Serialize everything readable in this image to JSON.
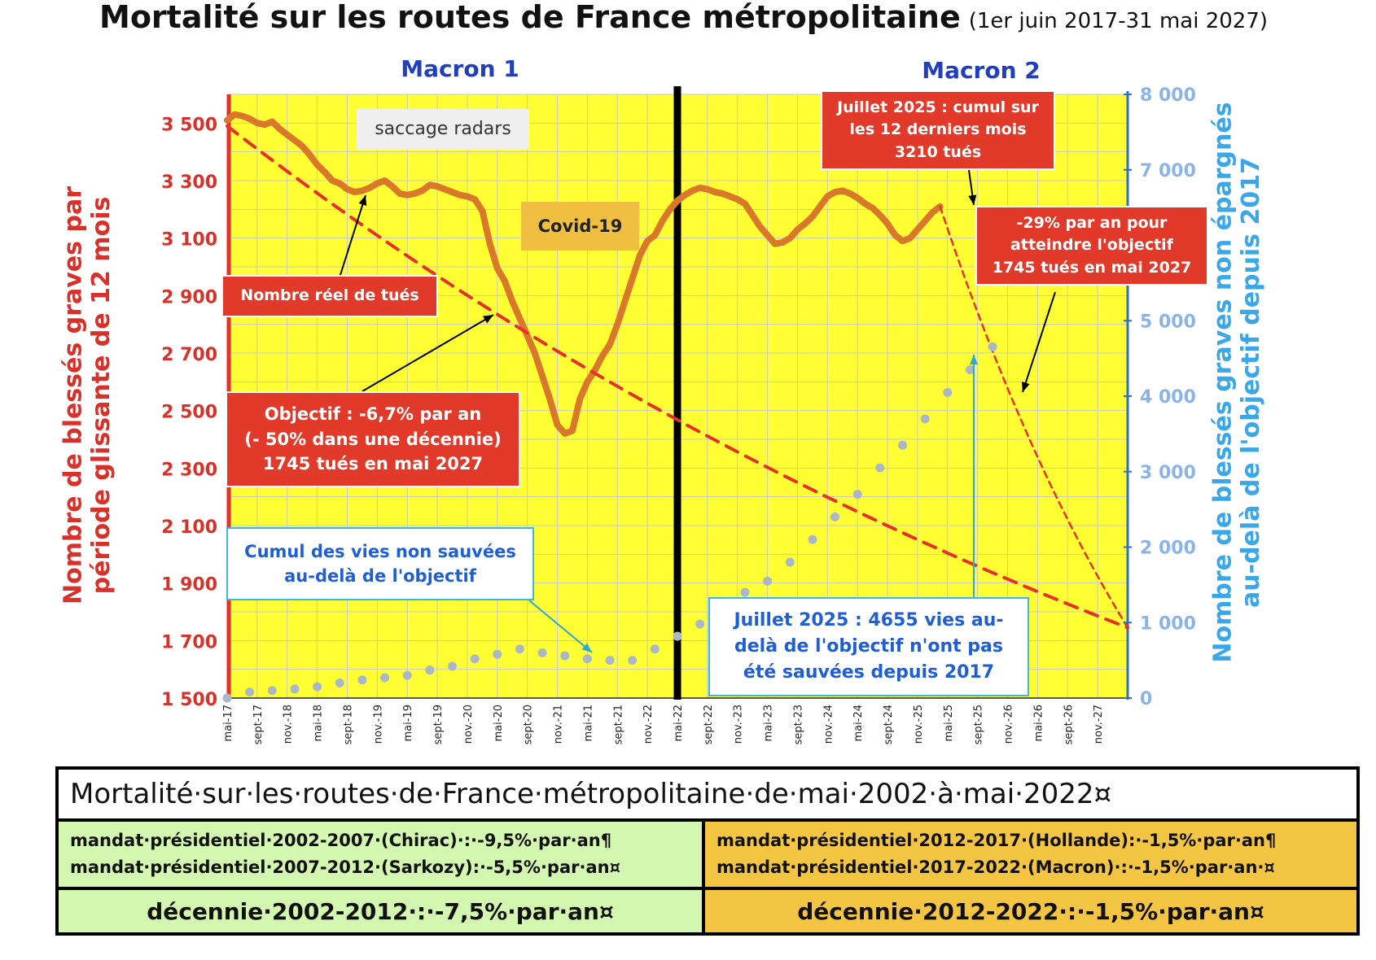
{
  "title": "Mortalité sur les routes de France métropolitaine",
  "title_period": "(1er juin 2017-31 mai 2027)",
  "sections": [
    "Macron 1",
    "Macron 2"
  ],
  "chart_data": {
    "type": "line",
    "ylabel_left": "Nombre de blessés graves par\npériode glissante de 12 mois",
    "ylabel_right": "Nombre de blessés graves non épargnés\nau-delà de l'objectif depuis 2017",
    "ylim_left": [
      1500,
      3600
    ],
    "ylim_right": [
      0,
      8000
    ],
    "yticks_left": [
      "3 500",
      "3 300",
      "3 100",
      "2 900",
      "2 700",
      "2 500",
      "2 300",
      "2 100",
      "1 900",
      "1 700",
      "1 500"
    ],
    "yticks_right": [
      "8 000",
      "7 000",
      "5 000",
      "4 000",
      "3 000",
      "2 000",
      "1 000",
      "0"
    ],
    "xticks": [
      "mai-17",
      "sept-17",
      "nov.-18",
      "mai-18",
      "sept-18",
      "nov.-19",
      "mai-19",
      "sept-19",
      "nov.-20",
      "mai-20",
      "sept-20",
      "nov.-21",
      "mai-21",
      "sept-21",
      "nov.-22",
      "mai-22",
      "sept-22",
      "nov.-23",
      "mai-23",
      "sept-23",
      "nov.-24",
      "mai-24",
      "sept-24",
      "nov.-25",
      "mai-25",
      "sept-25",
      "nov.-26",
      "mai-26",
      "sept-26",
      "nov.-27"
    ],
    "x_range_months": [
      0,
      120
    ],
    "divider_month": 60,
    "grid": true,
    "series": [
      {
        "name": "Nombre réel de tués",
        "color": "#d9782a",
        "axis": "left",
        "points": [
          [
            0,
            3510
          ],
          [
            1,
            3530
          ],
          [
            2,
            3525
          ],
          [
            3,
            3515
          ],
          [
            4,
            3500
          ],
          [
            5,
            3495
          ],
          [
            6,
            3505
          ],
          [
            7,
            3480
          ],
          [
            8,
            3460
          ],
          [
            9,
            3440
          ],
          [
            10,
            3420
          ],
          [
            11,
            3390
          ],
          [
            12,
            3355
          ],
          [
            13,
            3330
          ],
          [
            14,
            3300
          ],
          [
            15,
            3290
          ],
          [
            16,
            3270
          ],
          [
            17,
            3260
          ],
          [
            18,
            3265
          ],
          [
            19,
            3275
          ],
          [
            20,
            3290
          ],
          [
            21,
            3300
          ],
          [
            22,
            3280
          ],
          [
            23,
            3255
          ],
          [
            24,
            3250
          ],
          [
            25,
            3255
          ],
          [
            26,
            3265
          ],
          [
            27,
            3285
          ],
          [
            28,
            3280
          ],
          [
            29,
            3270
          ],
          [
            30,
            3260
          ],
          [
            31,
            3250
          ],
          [
            32,
            3245
          ],
          [
            33,
            3235
          ],
          [
            34,
            3195
          ],
          [
            35,
            3080
          ],
          [
            36,
            2995
          ],
          [
            37,
            2950
          ],
          [
            38,
            2880
          ],
          [
            39,
            2820
          ],
          [
            40,
            2760
          ],
          [
            41,
            2700
          ],
          [
            42,
            2620
          ],
          [
            43,
            2540
          ],
          [
            44,
            2450
          ],
          [
            45,
            2420
          ],
          [
            46,
            2430
          ],
          [
            47,
            2540
          ],
          [
            48,
            2600
          ],
          [
            49,
            2640
          ],
          [
            50,
            2690
          ],
          [
            51,
            2730
          ],
          [
            52,
            2800
          ],
          [
            53,
            2880
          ],
          [
            54,
            2960
          ],
          [
            55,
            3040
          ],
          [
            56,
            3090
          ],
          [
            57,
            3110
          ],
          [
            58,
            3160
          ],
          [
            59,
            3200
          ],
          [
            60,
            3230
          ],
          [
            61,
            3250
          ],
          [
            62,
            3265
          ],
          [
            63,
            3275
          ],
          [
            64,
            3270
          ],
          [
            65,
            3260
          ],
          [
            66,
            3255
          ],
          [
            67,
            3245
          ],
          [
            68,
            3235
          ],
          [
            69,
            3220
          ],
          [
            70,
            3180
          ],
          [
            71,
            3140
          ],
          [
            72,
            3110
          ],
          [
            73,
            3080
          ],
          [
            74,
            3085
          ],
          [
            75,
            3100
          ],
          [
            76,
            3130
          ],
          [
            77,
            3150
          ],
          [
            78,
            3175
          ],
          [
            79,
            3210
          ],
          [
            80,
            3245
          ],
          [
            81,
            3260
          ],
          [
            82,
            3265
          ],
          [
            83,
            3255
          ],
          [
            84,
            3240
          ],
          [
            85,
            3220
          ],
          [
            86,
            3205
          ],
          [
            87,
            3180
          ],
          [
            88,
            3150
          ],
          [
            89,
            3110
          ],
          [
            90,
            3090
          ],
          [
            91,
            3100
          ],
          [
            92,
            3130
          ],
          [
            93,
            3160
          ],
          [
            94,
            3190
          ],
          [
            95,
            3210
          ]
        ]
      },
      {
        "name": "Objectif : -6,7% par an",
        "color": "#e8302a",
        "axis": "left",
        "dashed": true,
        "points": [
          [
            0,
            3490
          ],
          [
            120,
            1745
          ]
        ]
      },
      {
        "name": "-29% par an pour atteindre l'objectif",
        "color": "#e8302a",
        "axis": "left",
        "dashed": true,
        "points": [
          [
            95,
            3210
          ],
          [
            120,
            1745
          ]
        ]
      },
      {
        "name": "Cumul des vies non sauvées au-delà de l'objectif",
        "color": "#a9b7c9",
        "axis": "right",
        "dotted": true,
        "points": [
          [
            0,
            0
          ],
          [
            3,
            80
          ],
          [
            6,
            100
          ],
          [
            9,
            120
          ],
          [
            12,
            150
          ],
          [
            15,
            200
          ],
          [
            18,
            240
          ],
          [
            21,
            270
          ],
          [
            24,
            300
          ],
          [
            27,
            370
          ],
          [
            30,
            420
          ],
          [
            33,
            520
          ],
          [
            36,
            580
          ],
          [
            39,
            650
          ],
          [
            42,
            600
          ],
          [
            45,
            560
          ],
          [
            48,
            520
          ],
          [
            51,
            500
          ],
          [
            54,
            500
          ],
          [
            57,
            650
          ],
          [
            60,
            820
          ],
          [
            63,
            980
          ],
          [
            66,
            1150
          ],
          [
            69,
            1400
          ],
          [
            72,
            1550
          ],
          [
            75,
            1800
          ],
          [
            78,
            2100
          ],
          [
            81,
            2400
          ],
          [
            84,
            2700
          ],
          [
            87,
            3050
          ],
          [
            90,
            3350
          ],
          [
            93,
            3700
          ],
          [
            96,
            4050
          ],
          [
            99,
            4350
          ],
          [
            102,
            4655
          ]
        ]
      }
    ]
  },
  "annotations": {
    "saccage": "saccage radars",
    "covid": "Covid-19",
    "reel": "Nombre réel de tués",
    "objectif": "Objectif : -6,7% par an\n(- 50% dans une décennie)\n1745 tués en mai 2027",
    "cumul": "Cumul des vies non sauvées\nau-delà de l'objectif",
    "juillet_cumul": "Juillet 2025 : cumul sur\nles 12 derniers mois\n3210 tués",
    "moins29": "-29% par an pour\natteindre l'objectif\n1745 tués en mai 2027",
    "juillet_vies": "Juillet 2025 : 4655 vies au-\ndelà de l'objectif n'ont pas\nété sauvées depuis 2017"
  },
  "table": {
    "title": "Mortalité·sur·les·routes·de·France·métropolitaine·de·mai·2002·à·mai·2022¤",
    "left_line1": "mandat·présidentiel·2002-2007·(Chirac)·:·-9,5%·par·an¶",
    "left_line2": "mandat·présidentiel·2007-2012·(Sarkozy):·-5,5%·par·an¤",
    "right_line1": "mandat·présidentiel·2012-2017·(Hollande):·-1,5%·par·an¶",
    "right_line2": "mandat·présidentiel·2017-2022·(Macron)·:·-1,5%·par·an·¤",
    "decade_left": "décennie·2002-2012·:·-7,5%·par·an¤",
    "decade_right": "décennie·2012-2022·:·-1,5%·par·an¤"
  }
}
